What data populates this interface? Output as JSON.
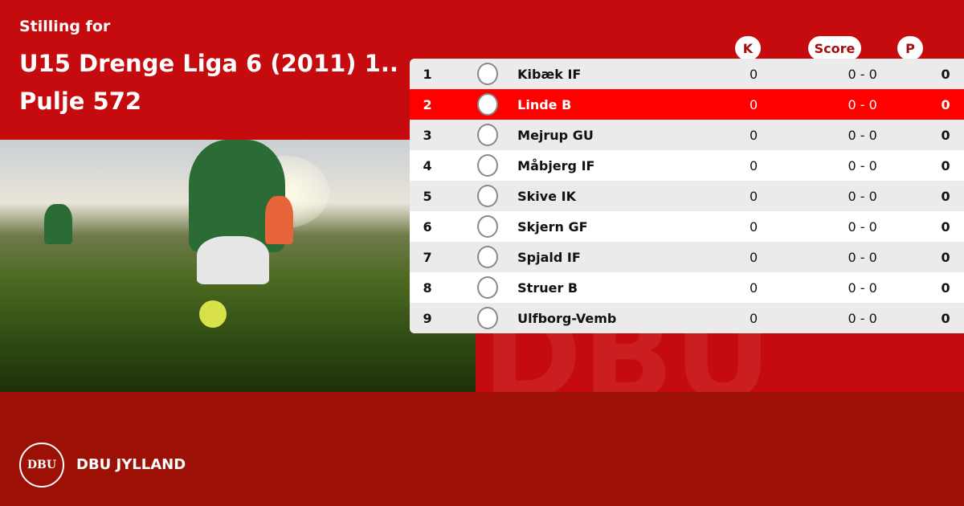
{
  "header": {
    "subtitle": "Stilling for",
    "title_line1": "U15 Drenge Liga 6 (2011) 1..",
    "title_line2": "Pulje 572"
  },
  "columns": {
    "k": "K",
    "score": "Score",
    "p": "P"
  },
  "highlight_color": "#fe0000",
  "rows": [
    {
      "pos": "1",
      "team": "Kibæk IF",
      "k": "0",
      "score": "0 - 0",
      "p": "0",
      "logo": "kibaek-if-crest"
    },
    {
      "pos": "2",
      "team": "Linde B",
      "k": "0",
      "score": "0 - 0",
      "p": "0",
      "logo": "linde-b-crest",
      "highlighted": true
    },
    {
      "pos": "3",
      "team": "Mejrup GU",
      "k": "0",
      "score": "0 - 0",
      "p": "0",
      "logo": "mejrup-gu-crest"
    },
    {
      "pos": "4",
      "team": "Måbjerg IF",
      "k": "0",
      "score": "0 - 0",
      "p": "0",
      "logo": "maabjerg-if-crest"
    },
    {
      "pos": "5",
      "team": "Skive IK",
      "k": "0",
      "score": "0 - 0",
      "p": "0",
      "logo": "skive-ik-crest"
    },
    {
      "pos": "6",
      "team": "Skjern GF",
      "k": "0",
      "score": "0 - 0",
      "p": "0",
      "logo": "skjern-gf-crest"
    },
    {
      "pos": "7",
      "team": "Spjald IF",
      "k": "0",
      "score": "0 - 0",
      "p": "0",
      "logo": "spjald-if-crest"
    },
    {
      "pos": "8",
      "team": "Struer B",
      "k": "0",
      "score": "0 - 0",
      "p": "0",
      "logo": "struer-b-crest"
    },
    {
      "pos": "9",
      "team": "Ulfborg-Vemb",
      "k": "0",
      "score": "0 - 0",
      "p": "0",
      "logo": "ulfborg-vemb-crest"
    }
  ],
  "footer": {
    "org": "DBU JYLLAND",
    "seal_text": "DBU"
  }
}
